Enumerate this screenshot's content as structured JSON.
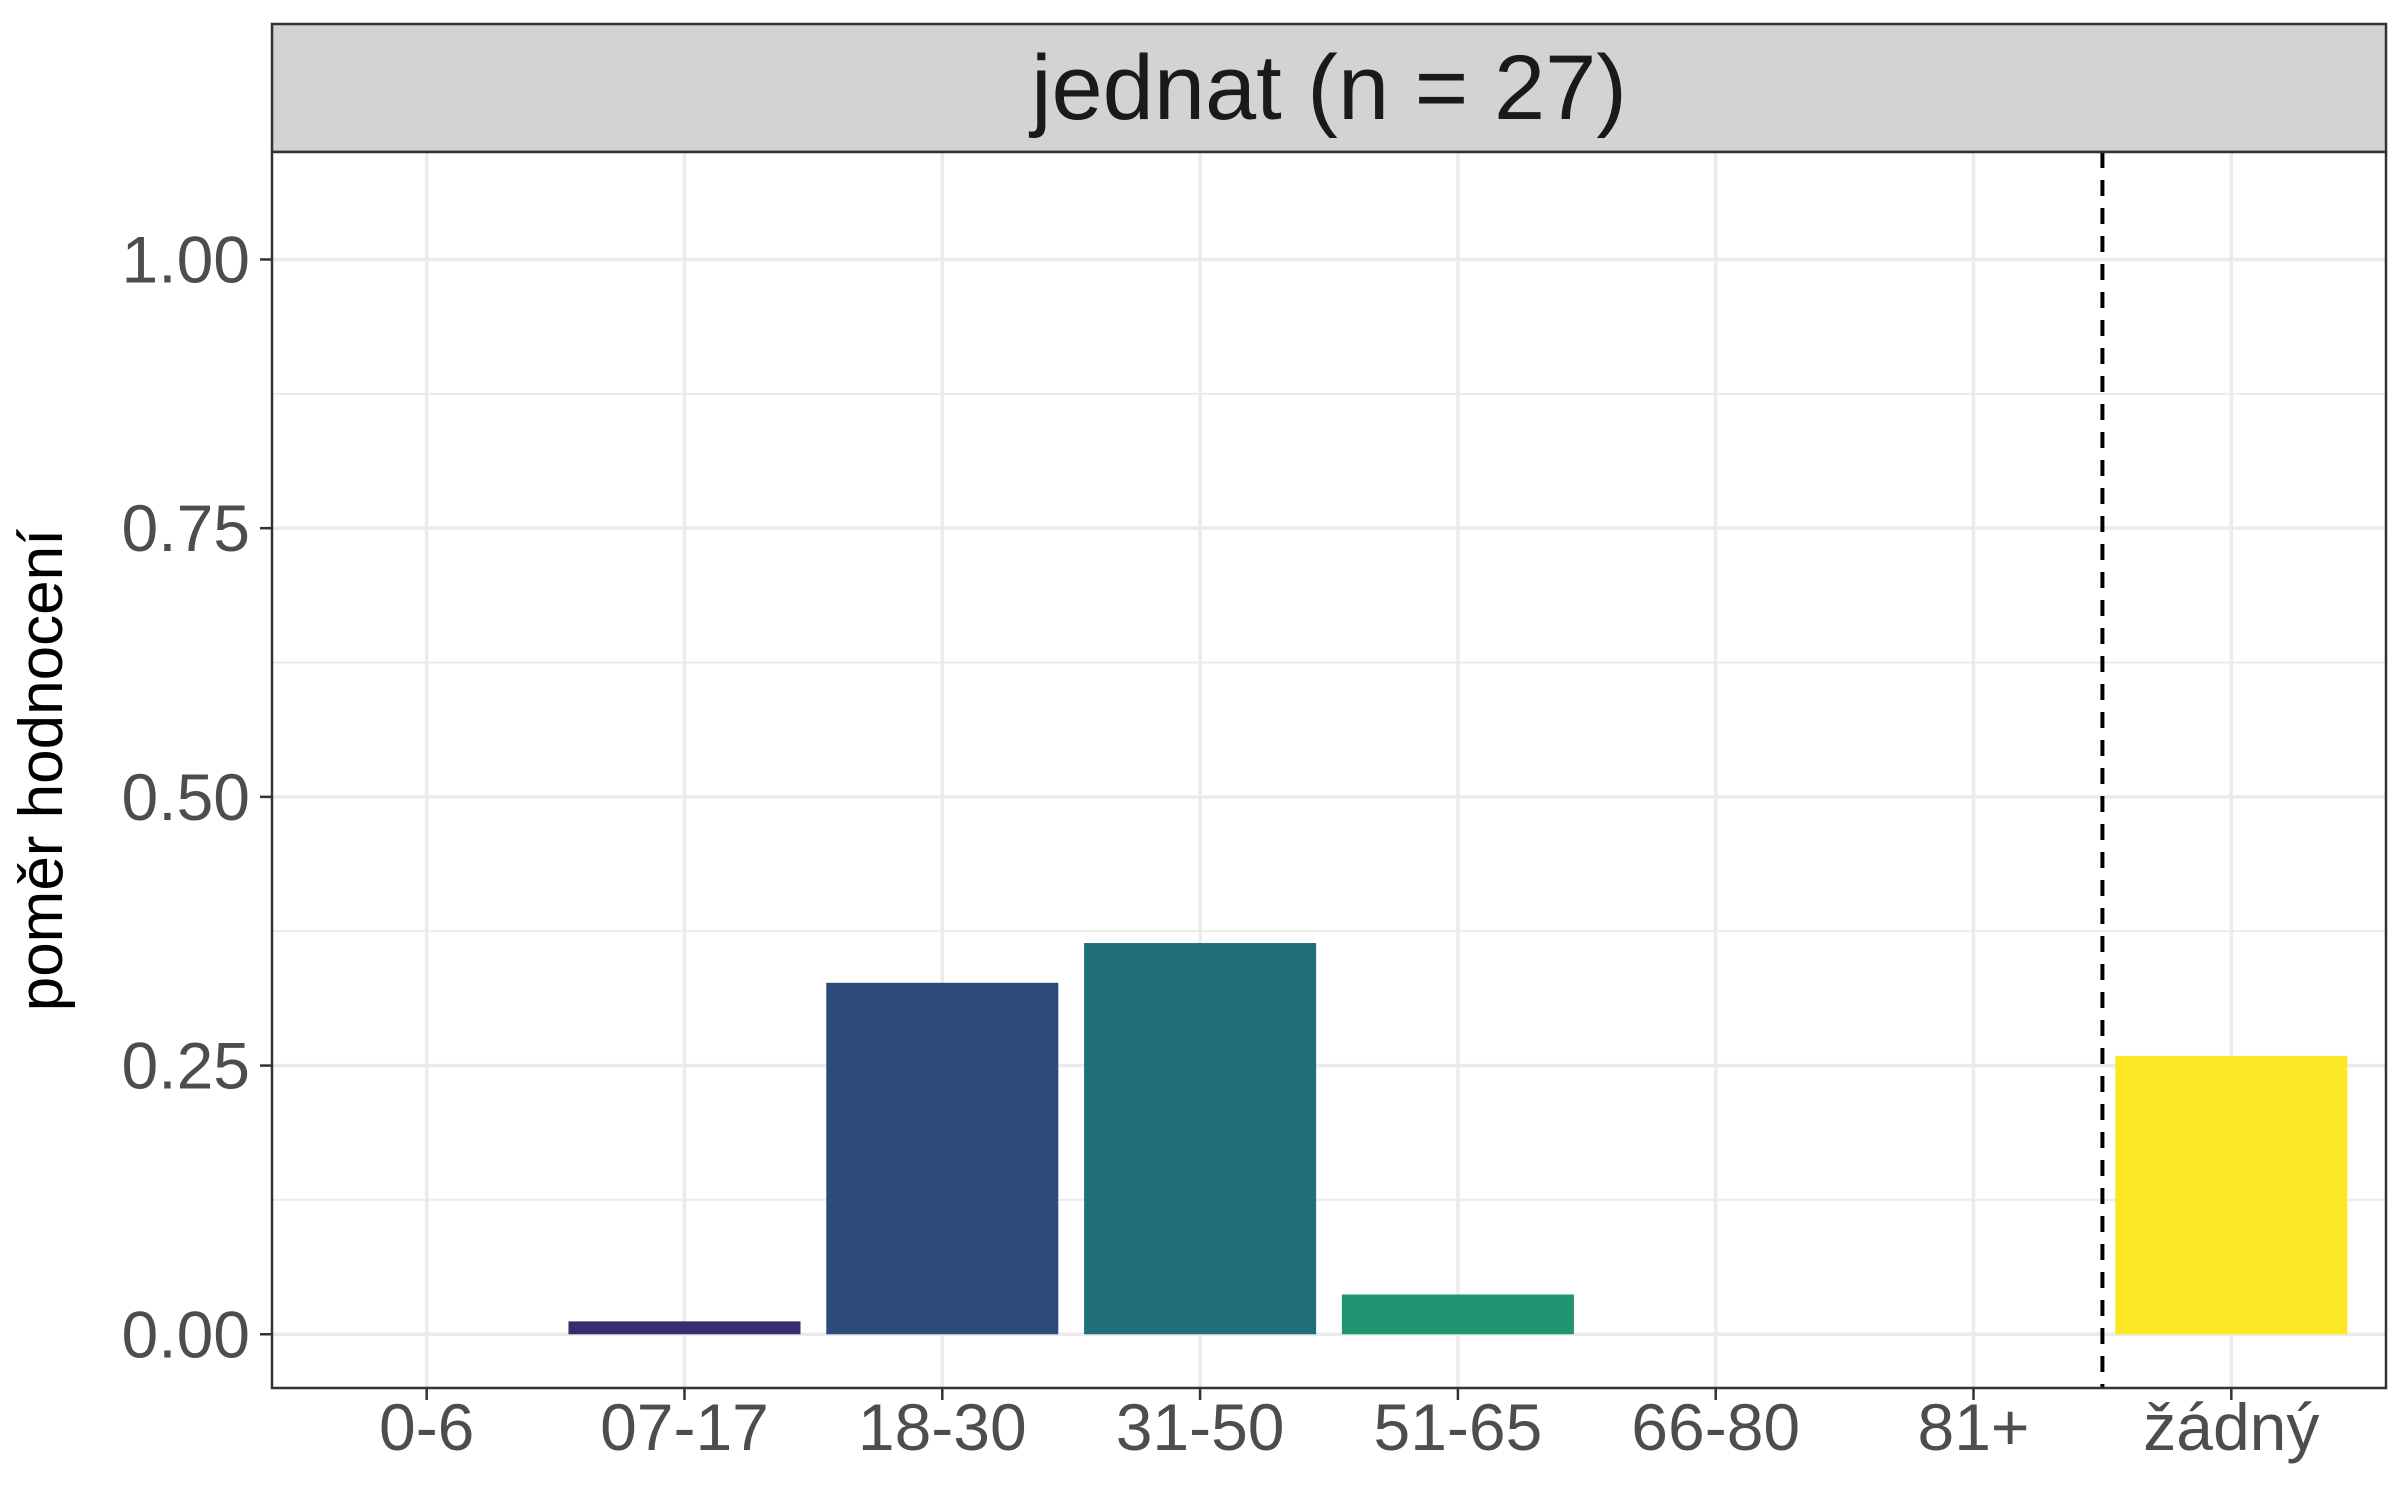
{
  "chart_data": {
    "type": "bar",
    "facet_title": "jednat (n = 27)",
    "xlabel": "",
    "ylabel": "poměr hodnocení",
    "categories": [
      "0-6",
      "07-17",
      "18-30",
      "31-50",
      "51-65",
      "66-80",
      "81+",
      "žádný"
    ],
    "values": [
      0,
      0.012,
      0.327,
      0.364,
      0.037,
      0,
      0,
      0.259
    ],
    "colors": [
      "#440154",
      "#3b2a6e",
      "#2c4a7a",
      "#206e7a",
      "#209572",
      "#48c16e",
      "#95d840",
      "#fde725"
    ],
    "ylim": [
      -0.05,
      1.1
    ],
    "yticks": [
      0,
      0.25,
      0.5,
      0.75,
      1.0
    ],
    "ytick_labels": [
      "0.00",
      "0.25",
      "0.50",
      "0.75",
      "1.00"
    ],
    "reference_line": {
      "style": "dashed",
      "between": [
        "81+",
        "žádný"
      ]
    },
    "grid": true,
    "legend": "none"
  }
}
